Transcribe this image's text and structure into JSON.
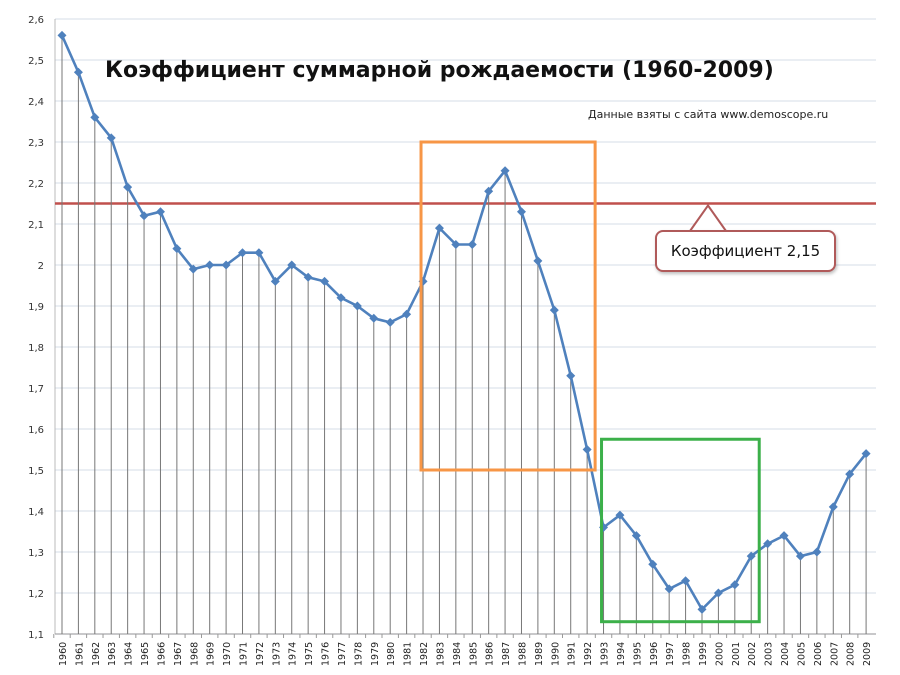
{
  "chart_data": {
    "type": "line",
    "title": "Коэффициент суммарной рождаемости (1960-2009)",
    "source_note": "Данные взяты с сайта www.demoscope.ru",
    "x": [
      1960,
      1961,
      1962,
      1963,
      1964,
      1965,
      1966,
      1967,
      1968,
      1969,
      1970,
      1971,
      1972,
      1973,
      1974,
      1975,
      1976,
      1977,
      1978,
      1979,
      1980,
      1981,
      1982,
      1983,
      1984,
      1985,
      1986,
      1987,
      1988,
      1989,
      1990,
      1991,
      1992,
      1993,
      1994,
      1995,
      1996,
      1997,
      1998,
      1999,
      2000,
      2001,
      2002,
      2003,
      2004,
      2005,
      2006,
      2007,
      2008,
      2009
    ],
    "series": [
      {
        "values": [
          2.56,
          2.47,
          2.36,
          2.31,
          2.19,
          2.12,
          2.13,
          2.04,
          1.99,
          2.0,
          2.0,
          2.03,
          2.03,
          1.96,
          2.0,
          1.97,
          1.96,
          1.92,
          1.9,
          1.87,
          1.86,
          1.88,
          1.96,
          2.09,
          2.05,
          2.05,
          2.18,
          2.23,
          2.13,
          2.01,
          1.89,
          1.73,
          1.55,
          1.36,
          1.39,
          1.34,
          1.27,
          1.21,
          1.23,
          1.16,
          1.2,
          1.22,
          1.29,
          1.32,
          1.34,
          1.29,
          1.3,
          1.41,
          1.49,
          1.54
        ],
        "color": "#4f81bd"
      }
    ],
    "ylim": [
      1.1,
      2.6
    ],
    "ytick_step": 0.1,
    "ytick_labels": [
      "1,1",
      "1,2",
      "1,3",
      "1,4",
      "1,5",
      "1,6",
      "1,7",
      "1,8",
      "1,9",
      "2",
      "2,1",
      "2,2",
      "2,3",
      "2,4",
      "2,5",
      "2,6"
    ],
    "grid": true,
    "drop_lines": true,
    "reference_line": {
      "value": 2.15,
      "label": "Коэффициент  2,15",
      "color": "#c0504d"
    },
    "highlight_boxes": [
      {
        "color": "#f79646",
        "years": [
          1982,
          1992
        ],
        "y_range": [
          1.5,
          2.3
        ]
      },
      {
        "color": "#3cb04a",
        "years": [
          1993,
          2002
        ],
        "y_range": [
          1.13,
          1.575
        ]
      }
    ]
  }
}
